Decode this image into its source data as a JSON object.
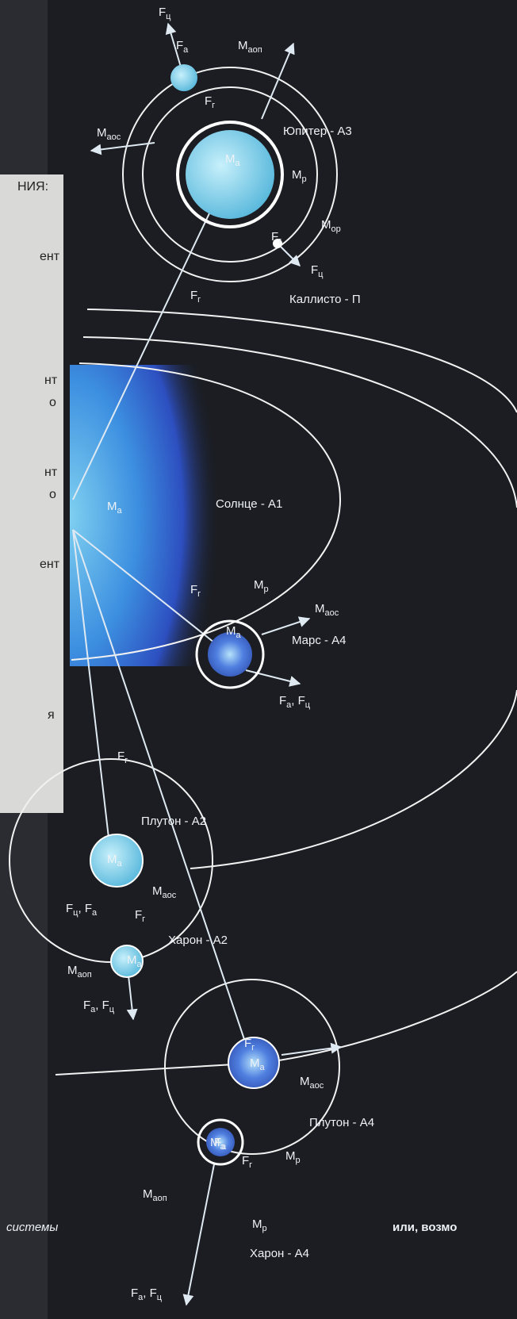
{
  "labels": [
    [
      "F",
      "ц"
    ],
    [
      "F",
      "а"
    ],
    [
      "M",
      "аоп"
    ],
    [
      "M",
      "аос"
    ],
    [
      "Юпитер - А3"
    ],
    [
      "M",
      "а"
    ],
    [
      "F",
      "г"
    ],
    [
      "M",
      "р"
    ],
    [
      "M",
      "ор"
    ],
    [
      "F",
      "г"
    ],
    [
      "F",
      "ц"
    ],
    [
      "Каллисто - П"
    ],
    [
      "F",
      "г"
    ],
    [
      "M",
      "а"
    ],
    [
      "Солнце - А1"
    ],
    [
      "F",
      "г"
    ],
    [
      "M",
      "р"
    ],
    [
      "M",
      "аос"
    ],
    [
      "M",
      "а"
    ],
    [
      "Марс - А4"
    ],
    [
      "F",
      "а",
      ", F",
      "ц"
    ],
    [
      "F",
      "г"
    ],
    [
      "Плутон - А2"
    ],
    [
      "M",
      "а"
    ],
    [
      "M",
      "аос"
    ],
    [
      "F",
      "ц",
      ", F",
      "а"
    ],
    [
      "F",
      "г"
    ],
    [
      "Харон - А2"
    ],
    [
      "M",
      "а"
    ],
    [
      "M",
      "аоп"
    ],
    [
      "F",
      "а",
      ", F",
      "ц"
    ],
    [
      "F",
      "г"
    ],
    [
      "M",
      "аос"
    ],
    [
      "M",
      "а"
    ],
    [
      "Плутон - А4"
    ],
    [
      "F",
      "а"
    ],
    [
      "F",
      "г"
    ],
    [
      "M",
      "р"
    ],
    [
      "M",
      "аоп"
    ],
    [
      "M",
      "а"
    ],
    [
      "M",
      "р"
    ],
    [
      "Харон - А4"
    ],
    [
      "F",
      "а",
      ", F",
      "ц"
    ]
  ],
  "panel": [
    "НИЯ:",
    "ент",
    "нт",
    "о",
    "нт",
    "о",
    "ент",
    "я"
  ],
  "footer": {
    "left": "системы",
    "right": "или, возмо"
  }
}
